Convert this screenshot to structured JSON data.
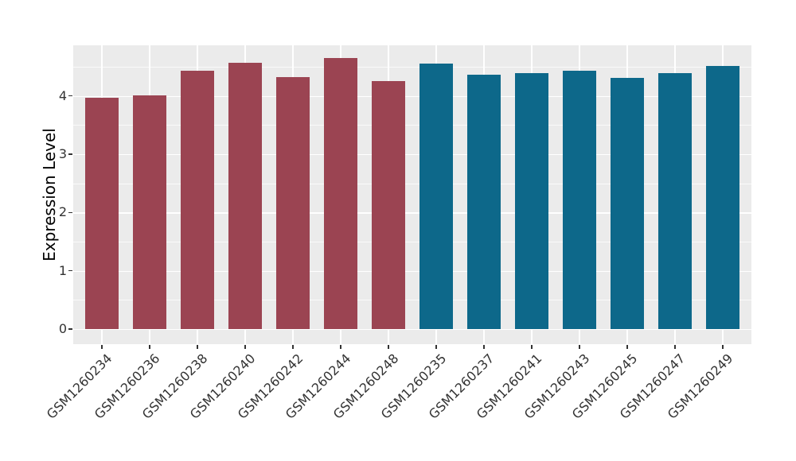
{
  "chart_data": {
    "type": "bar",
    "title": "",
    "xlabel": "",
    "ylabel": "Expression Level",
    "categories": [
      "GSM1260234",
      "GSM1260236",
      "GSM1260238",
      "GSM1260240",
      "GSM1260242",
      "GSM1260244",
      "GSM1260248",
      "GSM1260235",
      "GSM1260237",
      "GSM1260241",
      "GSM1260243",
      "GSM1260245",
      "GSM1260247",
      "GSM1260249"
    ],
    "values": [
      3.97,
      4.01,
      4.43,
      4.57,
      4.33,
      4.65,
      4.26,
      4.56,
      4.36,
      4.39,
      4.43,
      4.31,
      4.39,
      4.51
    ],
    "bar_colors": [
      "#9B4452",
      "#9B4452",
      "#9B4452",
      "#9B4452",
      "#9B4452",
      "#9B4452",
      "#9B4452",
      "#0D688A",
      "#0D688A",
      "#0D688A",
      "#0D688A",
      "#0D688A",
      "#0D688A",
      "#0D688A"
    ],
    "group_colors": {
      "left_group": "#9B4452",
      "right_group": "#0D688A"
    },
    "ylim": [
      -0.26,
      4.87
    ],
    "yticks": [
      0,
      1,
      2,
      3,
      4
    ],
    "minor_yticks": [
      0.5,
      1.5,
      2.5,
      3.5,
      4.5
    ],
    "ytick_labels": [
      "0",
      "1",
      "2",
      "3",
      "4"
    ],
    "bar_width_fraction": 0.7,
    "x_tick_rotation_deg": 45,
    "grid": true,
    "legend": "none",
    "panel_bg": "#EBEBEB",
    "grid_color": "#FFFFFF",
    "tick_label_color": "#333333",
    "axis_title_color": "#000000"
  }
}
